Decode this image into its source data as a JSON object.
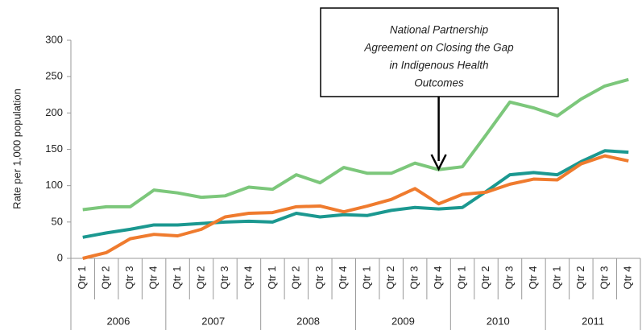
{
  "chart_data": {
    "type": "line",
    "y_label": "Rate per 1,000 population",
    "categories": [
      "Qtr 1",
      "Qtr 2",
      "Qtr 3",
      "Qtr 4",
      "Qtr 1",
      "Qtr 2",
      "Qtr 3",
      "Qtr 4",
      "Qtr 1",
      "Qtr 2",
      "Qtr 3",
      "Qtr 4",
      "Qtr 1",
      "Qtr 2",
      "Qtr 3",
      "Qtr 4",
      "Qtr 1",
      "Qtr 2",
      "Qtr 3",
      "Qtr 4",
      "Qtr 1",
      "Qtr 2",
      "Qtr 3",
      "Qtr 4"
    ],
    "years": [
      "2006",
      "2007",
      "2008",
      "2009",
      "2010",
      "2011"
    ],
    "series": [
      {
        "color": "#7cc77b",
        "values": [
          67,
          71,
          71,
          94,
          90,
          84,
          86,
          98,
          95,
          115,
          104,
          125,
          117,
          117,
          131,
          122,
          126,
          170,
          215,
          207,
          196,
          219,
          237,
          246
        ]
      },
      {
        "color": "#1b9890",
        "values": [
          29,
          35,
          40,
          46,
          46,
          48,
          50,
          51,
          50,
          62,
          57,
          60,
          59,
          66,
          70,
          68,
          70,
          92,
          115,
          118,
          115,
          133,
          148,
          146
        ]
      },
      {
        "color": "#ef7b2e",
        "values": [
          0,
          8,
          27,
          33,
          31,
          40,
          57,
          62,
          63,
          71,
          72,
          64,
          72,
          81,
          96,
          75,
          88,
          91,
          102,
          109,
          108,
          130,
          141,
          134
        ]
      }
    ],
    "ylim": [
      0,
      300
    ],
    "yticks": [
      0,
      50,
      100,
      150,
      200,
      250,
      300
    ],
    "annotation": {
      "lines": [
        "National Partnership",
        "Agreement on Closing the Gap",
        "in Indigenous Health",
        "Outcomes"
      ]
    }
  }
}
